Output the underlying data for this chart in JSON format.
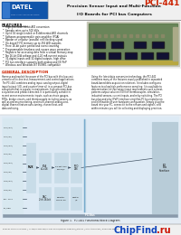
{
  "title_product": "PCI-441",
  "title_line1": "Precision Sensor Input and Multi-Function",
  "title_line2": "I/O Boards for PCI bus Computers",
  "logo_text": "DATEL",
  "logo_sub": "PRECISION AND EXCELLENCE",
  "color_red": "#cc2200",
  "color_blue": "#1155aa",
  "color_light_blue": "#aaccee",
  "color_bg": "#f0f0f0",
  "color_white": "#ffffff",
  "color_black": "#111111",
  "color_dark_gray": "#333333",
  "color_mid_gray": "#777777",
  "color_light_gray": "#bbbbbb",
  "color_chipfind_blue": "#1144bb",
  "color_chipfind_red": "#cc1100",
  "color_diagram_bg": "#e8eef2",
  "color_block_fill": "#d0dce8",
  "color_block_border": "#556677",
  "color_pcb_green": "#5a7a4a",
  "color_pcb_dark": "#3a5a2a",
  "color_line": "#445566",
  "features_title": "FEATURES",
  "general_desc_title": "GENERAL DESCRIPTION",
  "figure_caption": "Figure 1.  PCI-441 Functional Block Diagram",
  "features": [
    "High-precision 16-bit A/D conversion",
    "Sample rates up to 500 kS/s",
    "Up to 16 single-ended or 8 differential A/D channels",
    "Software-programmable gain amplifier (PGA)",
    "Bipolar or unipolar (pseudo) self-clocking signal",
    "On-board FIFO memory up to 256 A/D samples",
    "Three 16-bit pulse period and event counting",
    "Programmable timebase and square wave generation",
    "Registers for accessing data from a virtual memory map",
    "Two 16-bit D/A voltage and 4-20 mA current outputs",
    "32-digital inputs and 32 digital outputs, high drive",
    "PCI bus interface supports both analog and I/O PnP",
    "Windows and Windows NT 95/98/1 compatible"
  ]
}
